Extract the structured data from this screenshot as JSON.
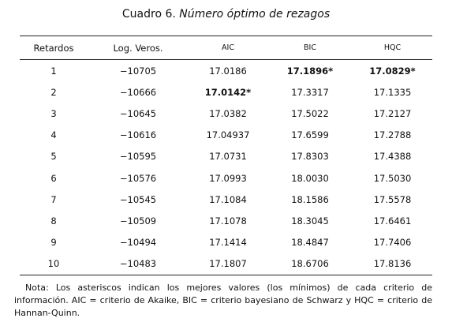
{
  "title": {
    "label": "Cuadro 6.",
    "text": "Número óptimo de rezagos"
  },
  "table": {
    "headers": [
      "Retardos",
      "Log. Veros.",
      "AIC",
      "BIC",
      "HQC"
    ],
    "rows": [
      [
        {
          "text": "1"
        },
        {
          "text": "−10705"
        },
        {
          "text": "17.0186"
        },
        {
          "text": "17.1896*",
          "bold": true
        },
        {
          "text": "17.0829*",
          "bold": true
        }
      ],
      [
        {
          "text": "2"
        },
        {
          "text": "−10666"
        },
        {
          "text": "17.0142*",
          "bold": true
        },
        {
          "text": "17.3317"
        },
        {
          "text": "17.1335"
        }
      ],
      [
        {
          "text": "3"
        },
        {
          "text": "−10645"
        },
        {
          "text": "17.0382"
        },
        {
          "text": "17.5022"
        },
        {
          "text": "17.2127"
        }
      ],
      [
        {
          "text": "4"
        },
        {
          "text": "−10616"
        },
        {
          "text": "17.04937"
        },
        {
          "text": "17.6599"
        },
        {
          "text": "17.2788"
        }
      ],
      [
        {
          "text": "5"
        },
        {
          "text": "−10595"
        },
        {
          "text": "17.0731"
        },
        {
          "text": "17.8303"
        },
        {
          "text": "17.4388"
        }
      ],
      [
        {
          "text": "6"
        },
        {
          "text": "−10576"
        },
        {
          "text": "17.0993"
        },
        {
          "text": "18.0030"
        },
        {
          "text": "17.5030"
        }
      ],
      [
        {
          "text": "7"
        },
        {
          "text": "−10545"
        },
        {
          "text": "17.1084"
        },
        {
          "text": "18.1586"
        },
        {
          "text": "17.5578"
        }
      ],
      [
        {
          "text": "8"
        },
        {
          "text": "−10509"
        },
        {
          "text": "17.1078"
        },
        {
          "text": "18.3045"
        },
        {
          "text": "17.6461"
        }
      ],
      [
        {
          "text": "9"
        },
        {
          "text": "−10494"
        },
        {
          "text": "17.1414"
        },
        {
          "text": "18.4847"
        },
        {
          "text": "17.7406"
        }
      ],
      [
        {
          "text": "10"
        },
        {
          "text": "−10483"
        },
        {
          "text": "17.1807"
        },
        {
          "text": "18.6706"
        },
        {
          "text": "17.8136"
        }
      ]
    ]
  },
  "note": "Nota: Los asteriscos indican los mejores valores (los mínimos) de cada criterio de información. AIC = criterio de Akaike, BIC = criterio bayesiano de Schwarz y HQC = criterio de Hannan-Quinn."
}
